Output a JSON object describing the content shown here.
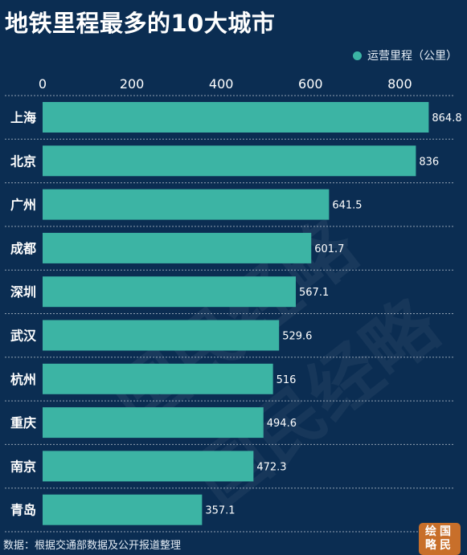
{
  "title": "地铁里程最多的10大城市",
  "source": "数据：根据交通部数据及公开报道整理",
  "badge": {
    "line1": "绘国",
    "line2": "略民"
  },
  "watermark": "国民经略",
  "colors": {
    "background": "#0b2d52",
    "bar": "#3cb4a4",
    "text": "#ffffff"
  },
  "chart_data": {
    "type": "bar",
    "orientation": "horizontal",
    "legend": "top-right",
    "grid": false,
    "categories": [
      "上海",
      "北京",
      "广州",
      "成都",
      "深圳",
      "武汉",
      "杭州",
      "重庆",
      "南京",
      "青岛"
    ],
    "series": [
      {
        "name": "运营里程（公里）",
        "values": [
          864.8,
          836,
          641.5,
          601.7,
          567.1,
          529.6,
          516,
          494.6,
          472.3,
          357.1
        ],
        "labels": [
          "864.8",
          "836",
          "641.5",
          "601.7",
          "567.1",
          "529.6",
          "516",
          "494.6",
          "472.3",
          "357.1"
        ]
      }
    ],
    "xticks": [
      "0",
      "200",
      "400",
      "600",
      "800"
    ],
    "xtick_values": [
      0,
      200,
      400,
      600,
      800
    ],
    "xlim": [
      0,
      870
    ]
  }
}
